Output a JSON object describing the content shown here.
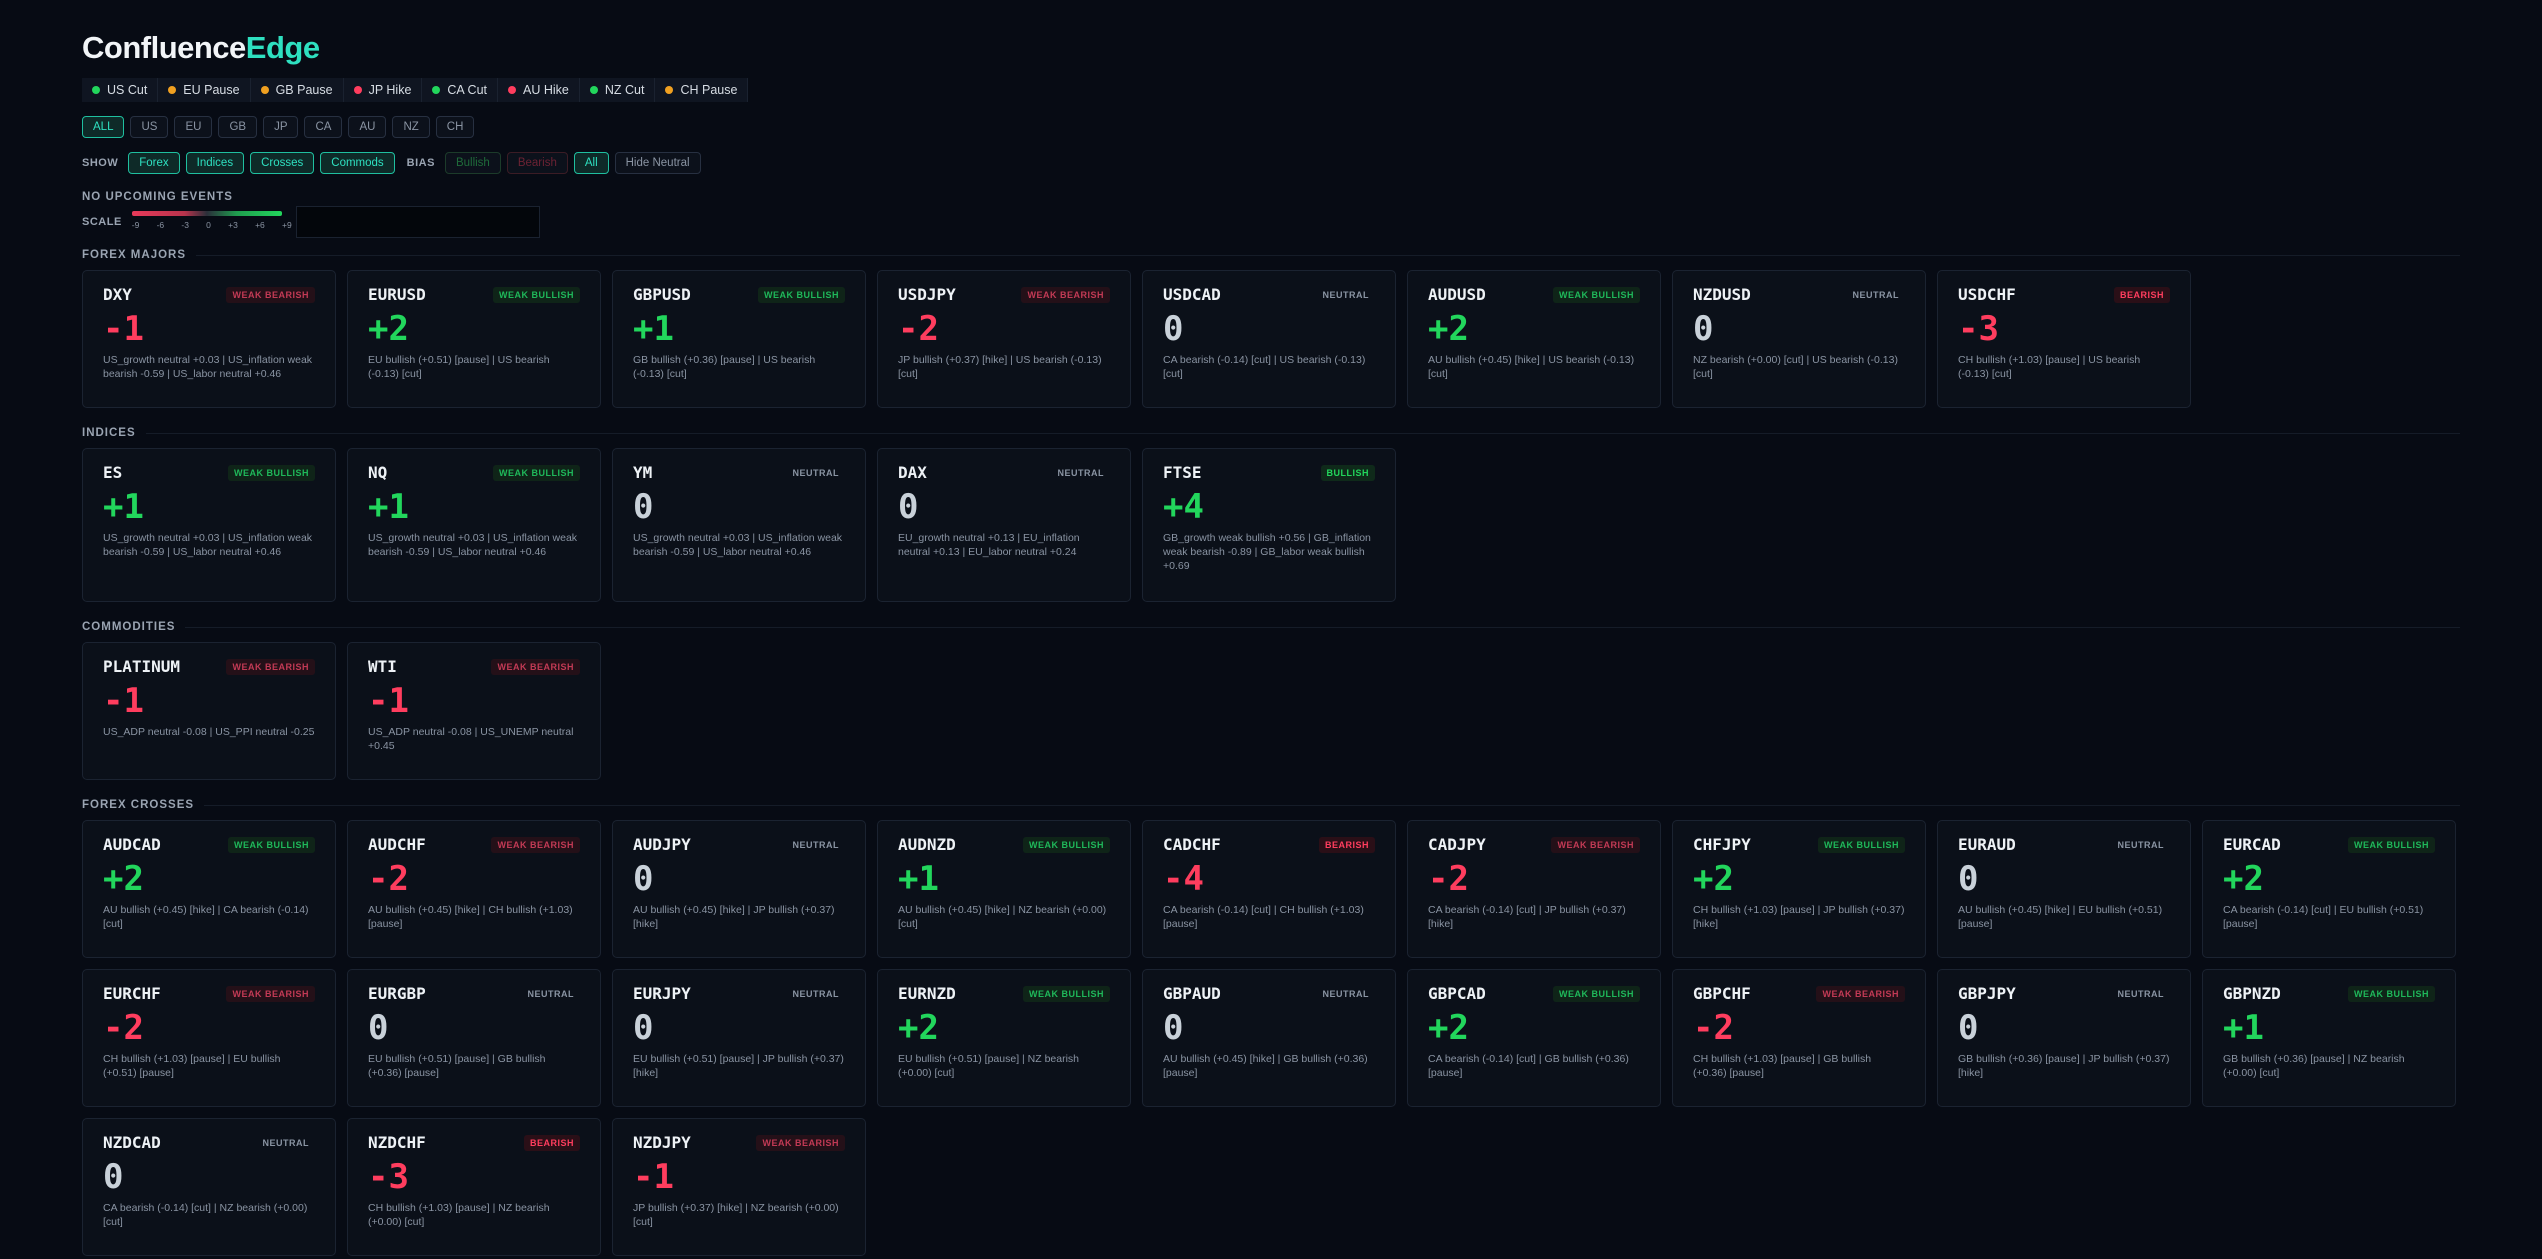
{
  "logo": {
    "part1": "Confluence",
    "part2": "Edge"
  },
  "events": [
    {
      "label": "US Cut",
      "color": "#22d65c"
    },
    {
      "label": "EU Pause",
      "color": "#f0a020"
    },
    {
      "label": "GB Pause",
      "color": "#f0a020"
    },
    {
      "label": "JP Hike",
      "color": "#ff3d5e"
    },
    {
      "label": "CA Cut",
      "color": "#22d65c"
    },
    {
      "label": "AU Hike",
      "color": "#ff3d5e"
    },
    {
      "label": "NZ Cut",
      "color": "#22d65c"
    },
    {
      "label": "CH Pause",
      "color": "#f0a020"
    }
  ],
  "currencies": [
    "ALL",
    "US",
    "EU",
    "GB",
    "JP",
    "CA",
    "AU",
    "NZ",
    "CH"
  ],
  "show": {
    "label": "SHOW",
    "items": [
      "Forex",
      "Indices",
      "Crosses",
      "Commods"
    ]
  },
  "bias": {
    "label": "BIAS",
    "items": [
      "Bullish",
      "Bearish",
      "All",
      "Hide Neutral"
    ]
  },
  "no_events": "NO UPCOMING EVENTS",
  "scale": {
    "label": "SCALE",
    "ticks": [
      "-9",
      "-6",
      "-3",
      "0",
      "+3",
      "+6",
      "+9"
    ]
  },
  "sections": [
    {
      "title": "FOREX MAJORS",
      "cards": [
        {
          "sym": "DXY",
          "badge": "WEAK BEARISH",
          "type": "wr",
          "score": "-1",
          "detail": "US_growth neutral +0.03 | US_inflation weak bearish -0.59 | US_labor neutral +0.46"
        },
        {
          "sym": "EURUSD",
          "badge": "WEAK BULLISH",
          "type": "wb",
          "score": "+2",
          "detail": "EU bullish (+0.51) [pause] | US bearish (-0.13) [cut]"
        },
        {
          "sym": "GBPUSD",
          "badge": "WEAK BULLISH",
          "type": "wb",
          "score": "+1",
          "detail": "GB bullish (+0.36) [pause] | US bearish (-0.13) [cut]"
        },
        {
          "sym": "USDJPY",
          "badge": "WEAK BEARISH",
          "type": "wr",
          "score": "-2",
          "detail": "JP bullish (+0.37) [hike] | US bearish (-0.13) [cut]"
        },
        {
          "sym": "USDCAD",
          "badge": "NEUTRAL",
          "type": "nu",
          "score": "0",
          "detail": "CA bearish (-0.14) [cut] | US bearish (-0.13) [cut]"
        },
        {
          "sym": "AUDUSD",
          "badge": "WEAK BULLISH",
          "type": "wb",
          "score": "+2",
          "detail": "AU bullish (+0.45) [hike] | US bearish (-0.13) [cut]"
        },
        {
          "sym": "NZDUSD",
          "badge": "NEUTRAL",
          "type": "nu",
          "score": "0",
          "detail": "NZ bearish (+0.00) [cut] | US bearish (-0.13) [cut]"
        },
        {
          "sym": "USDCHF",
          "badge": "BEARISH",
          "type": "br",
          "score": "-3",
          "detail": "CH bullish (+1.03) [pause] | US bearish (-0.13) [cut]"
        }
      ]
    },
    {
      "title": "INDICES",
      "tall": true,
      "cards": [
        {
          "sym": "ES",
          "badge": "WEAK BULLISH",
          "type": "wb",
          "score": "+1",
          "detail": "US_growth neutral +0.03 | US_inflation weak bearish -0.59 | US_labor neutral +0.46"
        },
        {
          "sym": "NQ",
          "badge": "WEAK BULLISH",
          "type": "wb",
          "score": "+1",
          "detail": "US_growth neutral +0.03 | US_inflation weak bearish -0.59 | US_labor neutral +0.46"
        },
        {
          "sym": "YM",
          "badge": "NEUTRAL",
          "type": "nu",
          "score": "0",
          "detail": "US_growth neutral +0.03 | US_inflation weak bearish -0.59 | US_labor neutral +0.46"
        },
        {
          "sym": "DAX",
          "badge": "NEUTRAL",
          "type": "nu",
          "score": "0",
          "detail": "EU_growth neutral +0.13 | EU_inflation neutral +0.13 | EU_labor neutral +0.24"
        },
        {
          "sym": "FTSE",
          "badge": "BULLISH",
          "type": "bu",
          "score": "+4",
          "detail": "GB_growth weak bullish +0.56 | GB_inflation weak bearish -0.89 | GB_labor weak bullish +0.69"
        }
      ]
    },
    {
      "title": "COMMODITIES",
      "cards": [
        {
          "sym": "PLATINUM",
          "badge": "WEAK BEARISH",
          "type": "wr",
          "score": "-1",
          "detail": "US_ADP neutral -0.08 | US_PPI neutral -0.25"
        },
        {
          "sym": "WTI",
          "badge": "WEAK BEARISH",
          "type": "wr",
          "score": "-1",
          "detail": "US_ADP neutral -0.08 | US_UNEMP neutral +0.45"
        }
      ]
    },
    {
      "title": "FOREX CROSSES",
      "cards": [
        {
          "sym": "AUDCAD",
          "badge": "WEAK BULLISH",
          "type": "wb",
          "score": "+2",
          "detail": "AU bullish (+0.45) [hike] | CA bearish (-0.14) [cut]"
        },
        {
          "sym": "AUDCHF",
          "badge": "WEAK BEARISH",
          "type": "wr",
          "score": "-2",
          "detail": "AU bullish (+0.45) [hike] | CH bullish (+1.03) [pause]"
        },
        {
          "sym": "AUDJPY",
          "badge": "NEUTRAL",
          "type": "nu",
          "score": "0",
          "detail": "AU bullish (+0.45) [hike] | JP bullish (+0.37) [hike]"
        },
        {
          "sym": "AUDNZD",
          "badge": "WEAK BULLISH",
          "type": "wb",
          "score": "+1",
          "detail": "AU bullish (+0.45) [hike] | NZ bearish (+0.00) [cut]"
        },
        {
          "sym": "CADCHF",
          "badge": "BEARISH",
          "type": "br",
          "score": "-4",
          "detail": "CA bearish (-0.14) [cut] | CH bullish (+1.03) [pause]"
        },
        {
          "sym": "CADJPY",
          "badge": "WEAK BEARISH",
          "type": "wr",
          "score": "-2",
          "detail": "CA bearish (-0.14) [cut] | JP bullish (+0.37) [hike]"
        },
        {
          "sym": "CHFJPY",
          "badge": "WEAK BULLISH",
          "type": "wb",
          "score": "+2",
          "detail": "CH bullish (+1.03) [pause] | JP bullish (+0.37) [hike]"
        },
        {
          "sym": "EURAUD",
          "badge": "NEUTRAL",
          "type": "nu",
          "score": "0",
          "detail": "AU bullish (+0.45) [hike] | EU bullish (+0.51) [pause]"
        },
        {
          "sym": "EURCAD",
          "badge": "WEAK BULLISH",
          "type": "wb",
          "score": "+2",
          "detail": "CA bearish (-0.14) [cut] | EU bullish (+0.51) [pause]"
        },
        {
          "sym": "EURCHF",
          "badge": "WEAK BEARISH",
          "type": "wr",
          "score": "-2",
          "detail": "CH bullish (+1.03) [pause] | EU bullish (+0.51) [pause]"
        },
        {
          "sym": "EURGBP",
          "badge": "NEUTRAL",
          "type": "nu",
          "score": "0",
          "detail": "EU bullish (+0.51) [pause] | GB bullish (+0.36) [pause]"
        },
        {
          "sym": "EURJPY",
          "badge": "NEUTRAL",
          "type": "nu",
          "score": "0",
          "detail": "EU bullish (+0.51) [pause] | JP bullish (+0.37) [hike]"
        },
        {
          "sym": "EURNZD",
          "badge": "WEAK BULLISH",
          "type": "wb",
          "score": "+2",
          "detail": "EU bullish (+0.51) [pause] | NZ bearish (+0.00) [cut]"
        },
        {
          "sym": "GBPAUD",
          "badge": "NEUTRAL",
          "type": "nu",
          "score": "0",
          "detail": "AU bullish (+0.45) [hike] | GB bullish (+0.36) [pause]"
        },
        {
          "sym": "GBPCAD",
          "badge": "WEAK BULLISH",
          "type": "wb",
          "score": "+2",
          "detail": "CA bearish (-0.14) [cut] | GB bullish (+0.36) [pause]"
        },
        {
          "sym": "GBPCHF",
          "badge": "WEAK BEARISH",
          "type": "wr",
          "score": "-2",
          "detail": "CH bullish (+1.03) [pause] | GB bullish (+0.36) [pause]"
        },
        {
          "sym": "GBPJPY",
          "badge": "NEUTRAL",
          "type": "nu",
          "score": "0",
          "detail": "GB bullish (+0.36) [pause] | JP bullish (+0.37) [hike]"
        },
        {
          "sym": "GBPNZD",
          "badge": "WEAK BULLISH",
          "type": "wb",
          "score": "+1",
          "detail": "GB bullish (+0.36) [pause] | NZ bearish (+0.00) [cut]"
        },
        {
          "sym": "NZDCAD",
          "badge": "NEUTRAL",
          "type": "nu",
          "score": "0",
          "detail": "CA bearish (-0.14) [cut] | NZ bearish (+0.00) [cut]"
        },
        {
          "sym": "NZDCHF",
          "badge": "BEARISH",
          "type": "br",
          "score": "-3",
          "detail": "CH bullish (+1.03) [pause] | NZ bearish (+0.00) [cut]"
        },
        {
          "sym": "NZDJPY",
          "badge": "WEAK BEARISH",
          "type": "wr",
          "score": "-1",
          "detail": "JP bullish (+0.37) [hike] | NZ bearish (+0.00) [cut]"
        }
      ]
    }
  ]
}
